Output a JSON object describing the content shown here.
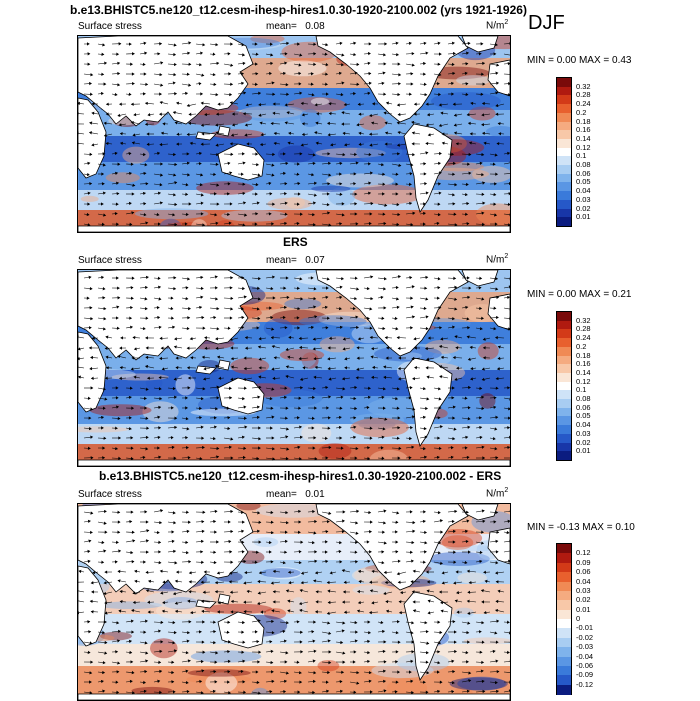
{
  "main_title": "b.e13.BHISTC5.ne120_t12.cesm-ihesp-hires1.0.30-1920-2100.002 (yrs 1921-1926)",
  "season": "DJF",
  "panels": [
    {
      "id": "model",
      "left_label": "Surface stress",
      "mean_label": "mean=",
      "mean_value": "0.08",
      "units": "N/m",
      "units_exp": "2",
      "minmax": "MIN =  0.00 MAX =  0.43",
      "colorbar_ticks": [
        "0.32",
        "0.28",
        "0.24",
        "0.2",
        "0.18",
        "0.16",
        "0.14",
        "0.12",
        "0.1",
        "0.08",
        "0.06",
        "0.05",
        "0.04",
        "0.03",
        "0.02",
        "0.01"
      ],
      "colors": [
        "#7a0a0a",
        "#b01a10",
        "#d33a18",
        "#e8602e",
        "#f08a55",
        "#f5ab80",
        "#f8c8a8",
        "#fae6d6",
        "#ffffff",
        "#cfe3f7",
        "#a8cdf2",
        "#7fb3ec",
        "#5a96e4",
        "#3a7ada",
        "#2658c8",
        "#1836a8",
        "#0b1c80"
      ]
    },
    {
      "id": "obs",
      "title": "ERS",
      "left_label": "Surface stress",
      "mean_label": "mean=",
      "mean_value": "0.07",
      "units": "N/m",
      "units_exp": "2",
      "minmax": "MIN =  0.00 MAX =  0.21",
      "colorbar_ticks": [
        "0.32",
        "0.28",
        "0.24",
        "0.2",
        "0.18",
        "0.16",
        "0.14",
        "0.12",
        "0.1",
        "0.08",
        "0.06",
        "0.05",
        "0.04",
        "0.03",
        "0.02",
        "0.01"
      ],
      "colors": [
        "#7a0a0a",
        "#b01a10",
        "#d33a18",
        "#e8602e",
        "#f08a55",
        "#f5ab80",
        "#f8c8a8",
        "#fae6d6",
        "#ffffff",
        "#cfe3f7",
        "#a8cdf2",
        "#7fb3ec",
        "#5a96e4",
        "#3a7ada",
        "#2658c8",
        "#1836a8",
        "#0b1c80"
      ]
    },
    {
      "id": "diff",
      "title": "b.e13.BHISTC5.ne120_t12.cesm-ihesp-hires1.0.30-1920-2100.002 - ERS",
      "left_label": "Surface stress",
      "mean_label": "mean=",
      "mean_value": "0.01",
      "units": "N/m",
      "units_exp": "2",
      "minmax": "MIN = -0.13 MAX =  0.10",
      "colorbar_ticks": [
        "0.12",
        "0.09",
        "0.06",
        "0.04",
        "0.03",
        "0.02",
        "0.01",
        "0",
        "-0.01",
        "-0.02",
        "-0.03",
        "-0.04",
        "-0.06",
        "-0.09",
        "-0.12"
      ],
      "colors": [
        "#7a0a0a",
        "#b01a10",
        "#d33a18",
        "#e8602e",
        "#f08a55",
        "#f5ab80",
        "#f8c8a8",
        "#fae6d6",
        "#ffffff",
        "#cfe3f7",
        "#a8cdf2",
        "#7fb3ec",
        "#5a96e4",
        "#3a7ada",
        "#2658c8",
        "#0b1c80"
      ]
    }
  ],
  "chart_data": [
    {
      "type": "heatmap",
      "title": "b.e13.BHISTC5.ne120_t12.cesm-ihesp-hires1.0.30-1920-2100.002 (yrs 1921-1926)",
      "variable": "Surface stress",
      "units": "N/m2",
      "season": "DJF",
      "mean": 0.08,
      "min": 0.0,
      "max": 0.43,
      "levels": [
        0.01,
        0.02,
        0.03,
        0.04,
        0.05,
        0.06,
        0.08,
        0.1,
        0.12,
        0.14,
        0.16,
        0.18,
        0.2,
        0.24,
        0.28,
        0.32
      ],
      "overlay": "wind stress vectors"
    },
    {
      "type": "heatmap",
      "title": "ERS",
      "variable": "Surface stress",
      "units": "N/m2",
      "mean": 0.07,
      "min": 0.0,
      "max": 0.21,
      "levels": [
        0.01,
        0.02,
        0.03,
        0.04,
        0.05,
        0.06,
        0.08,
        0.1,
        0.12,
        0.14,
        0.16,
        0.18,
        0.2,
        0.24,
        0.28,
        0.32
      ],
      "overlay": "wind stress vectors"
    },
    {
      "type": "heatmap",
      "title": "b.e13.BHISTC5.ne120_t12.cesm-ihesp-hires1.0.30-1920-2100.002 - ERS",
      "variable": "Surface stress",
      "units": "N/m2",
      "mean": 0.01,
      "min": -0.13,
      "max": 0.1,
      "levels": [
        -0.12,
        -0.09,
        -0.06,
        -0.04,
        -0.03,
        -0.02,
        -0.01,
        0,
        0.01,
        0.02,
        0.03,
        0.04,
        0.06,
        0.09,
        0.12
      ],
      "overlay": "wind stress difference vectors"
    }
  ]
}
